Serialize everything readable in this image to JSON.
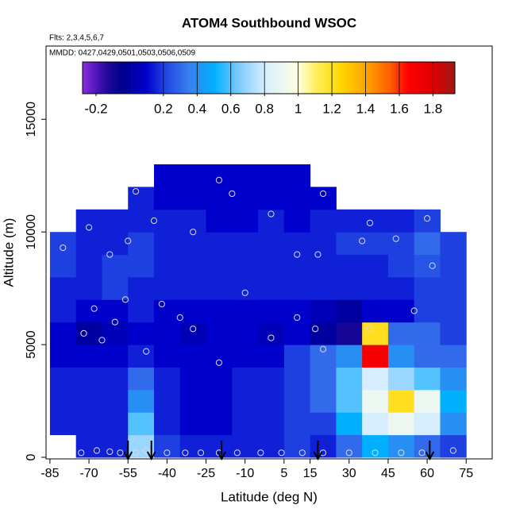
{
  "chart_data": {
    "type": "heatmap",
    "title": "ATOM4 Southbound WSOC",
    "subtitle": "Flts: 2,3,4,5,6,7",
    "annotation": "MMDD: 0427,0429,0501,0503,0506,0509",
    "x_label": "Latitude (deg N)",
    "y_label": "Altitude (m)",
    "xlim": [
      -86.5,
      85
    ],
    "ylim": [
      -70,
      18250
    ],
    "xticks": [
      -85,
      -70,
      -55,
      -40,
      -25,
      -10,
      5,
      15,
      30,
      45,
      60,
      75
    ],
    "yticks": [
      0,
      5000,
      10000,
      15000
    ],
    "x_edges": [
      -85,
      -75,
      -65,
      -55,
      -45,
      -35,
      -25,
      -15,
      -5,
      5,
      15,
      25,
      35,
      45,
      55,
      65,
      75
    ],
    "y_edges": [
      0,
      1000,
      2000,
      3000,
      4000,
      5000,
      6000,
      7000,
      8000,
      9000,
      10000,
      11000,
      12000,
      13000
    ],
    "z": [
      [
        null,
        0.15,
        0.15,
        0.7,
        0.2,
        0.15,
        0.15,
        0.15,
        0.15,
        0.2,
        0.15,
        0.3,
        0.5,
        0.4,
        0.3,
        0.2
      ],
      [
        0.15,
        0.15,
        0.15,
        0.6,
        0.15,
        0.1,
        0.1,
        0.15,
        0.15,
        0.2,
        0.2,
        0.5,
        0.8,
        0.9,
        0.8,
        0.4
      ],
      [
        0.15,
        0.15,
        0.15,
        0.4,
        0.15,
        0.1,
        0.1,
        0.15,
        0.15,
        0.2,
        0.3,
        0.6,
        0.9,
        1.2,
        0.9,
        0.5
      ],
      [
        0.15,
        0.15,
        0.15,
        0.3,
        0.15,
        0.1,
        0.1,
        0.15,
        0.15,
        0.2,
        0.3,
        0.6,
        0.8,
        0.7,
        0.6,
        0.4
      ],
      [
        0.1,
        0.1,
        0.1,
        0.15,
        0.1,
        0.1,
        0.1,
        0.1,
        0.1,
        0.2,
        0.3,
        0.4,
        1.7,
        0.4,
        0.3,
        0.3
      ],
      [
        0.1,
        0.0,
        0.05,
        0.1,
        0.1,
        0.05,
        0.1,
        0.1,
        0.05,
        0.1,
        0.0,
        -0.1,
        1.2,
        0.3,
        0.3,
        0.2
      ],
      [
        0.15,
        0.1,
        0.1,
        0.15,
        0.1,
        0.1,
        0.1,
        0.1,
        0.1,
        0.1,
        0.05,
        0.0,
        0.1,
        0.1,
        0.2,
        0.2
      ],
      [
        0.15,
        0.15,
        0.2,
        0.15,
        0.15,
        0.15,
        0.15,
        0.15,
        0.15,
        0.15,
        0.15,
        0.15,
        0.15,
        0.15,
        0.2,
        0.2
      ],
      [
        0.2,
        0.15,
        0.2,
        0.2,
        0.15,
        0.15,
        0.15,
        0.15,
        0.15,
        0.15,
        0.15,
        0.15,
        0.15,
        0.2,
        0.25,
        0.2
      ],
      [
        0.2,
        0.15,
        0.15,
        0.2,
        0.15,
        0.15,
        0.15,
        0.15,
        0.15,
        0.15,
        0.15,
        0.2,
        0.2,
        0.2,
        0.3,
        0.2
      ],
      [
        null,
        0.15,
        0.15,
        0.15,
        0.15,
        0.15,
        0.1,
        0.1,
        0.15,
        0.1,
        0.15,
        0.15,
        0.15,
        0.15,
        0.2,
        null
      ],
      [
        null,
        null,
        null,
        0.15,
        0.1,
        0.1,
        0.1,
        0.1,
        0.1,
        0.1,
        0.1,
        null,
        null,
        null,
        null,
        null
      ],
      [
        null,
        null,
        null,
        null,
        0.1,
        0.1,
        0.1,
        0.1,
        0.1,
        0.1,
        null,
        null,
        null,
        null,
        null,
        null
      ]
    ],
    "colorbar": {
      "clim": [
        -0.28,
        1.93
      ],
      "ticks": [
        -0.2,
        0.2,
        0.4,
        0.6,
        0.8,
        1.0,
        1.2,
        1.4,
        1.6,
        1.8
      ],
      "lines": [
        0,
        0.2,
        0.4,
        0.6,
        0.8,
        1.0,
        1.2,
        1.4,
        1.6,
        1.8
      ],
      "stops": [
        {
          "value": -0.28,
          "color": "#8a2be2"
        },
        {
          "value": -0.15,
          "color": "#2a0aa0"
        },
        {
          "value": -0.05,
          "color": "#00008b"
        },
        {
          "value": 0.1,
          "color": "#0000cd"
        },
        {
          "value": 0.2,
          "color": "#1e40e0"
        },
        {
          "value": 0.35,
          "color": "#3a7fef"
        },
        {
          "value": 0.5,
          "color": "#00b0ff"
        },
        {
          "value": 0.65,
          "color": "#7ecbff"
        },
        {
          "value": 0.8,
          "color": "#d6eeff"
        },
        {
          "value": 1.0,
          "color": "#ffffe0"
        },
        {
          "value": 1.1,
          "color": "#fff060"
        },
        {
          "value": 1.25,
          "color": "#ffd700"
        },
        {
          "value": 1.4,
          "color": "#ffa500"
        },
        {
          "value": 1.55,
          "color": "#ff5a00"
        },
        {
          "value": 1.65,
          "color": "#ff0000"
        },
        {
          "value": 1.8,
          "color": "#dd0000"
        },
        {
          "value": 1.93,
          "color": "#a01818"
        }
      ]
    },
    "points": {
      "x": [
        -73,
        -67,
        -62,
        -58,
        -52,
        -48,
        -40,
        -33,
        -27,
        -20,
        -13,
        -4,
        4,
        12,
        20,
        30,
        40,
        50,
        58,
        70,
        -72,
        -68,
        -65,
        -60,
        -56,
        -48,
        -42,
        -35,
        -30,
        -20,
        -10,
        0,
        10,
        17,
        20,
        38,
        55,
        -80,
        -70,
        -62,
        -55,
        -45,
        -30,
        -15,
        0,
        10,
        18,
        35,
        48,
        62,
        -52,
        -20,
        20,
        38,
        60
      ],
      "y": [
        200,
        300,
        250,
        200,
        200,
        300,
        200,
        200,
        200,
        200,
        200,
        200,
        200,
        200,
        200,
        200,
        200,
        200,
        200,
        300,
        5500,
        6600,
        5200,
        6000,
        7000,
        4700,
        6800,
        6200,
        5700,
        4200,
        7300,
        5300,
        6200,
        5700,
        4800,
        5700,
        6500,
        9300,
        10200,
        9000,
        9600,
        10500,
        10000,
        11700,
        10800,
        9000,
        9000,
        9600,
        9700,
        8500,
        11800,
        12300,
        11700,
        10400,
        10600
      ]
    },
    "arrows_lat": [
      -55,
      -46,
      -19,
      18,
      61
    ]
  }
}
